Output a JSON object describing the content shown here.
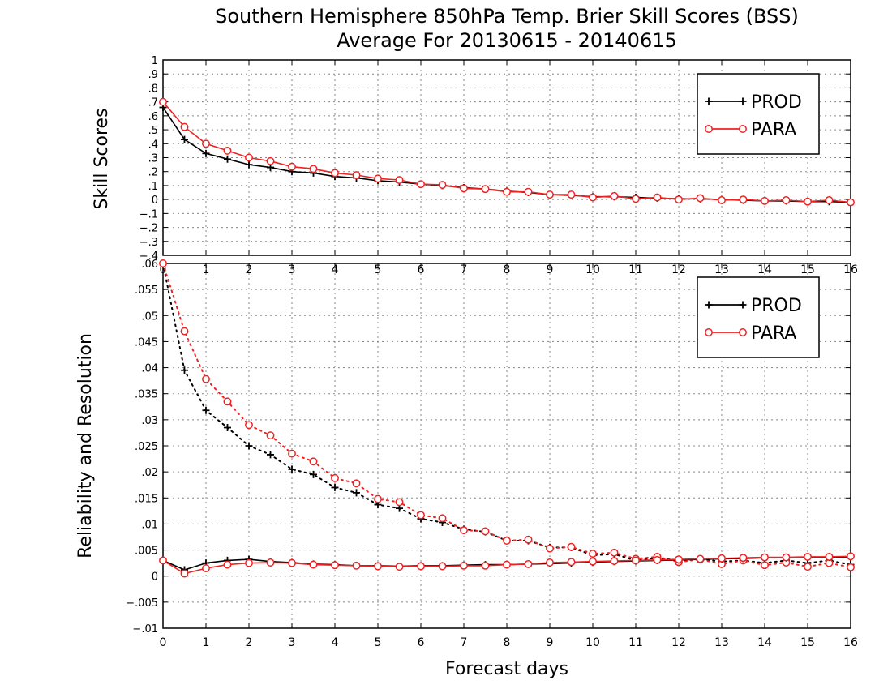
{
  "title_line1": "Southern Hemisphere 850hPa Temp. Brier Skill Scores (BSS)",
  "title_line2": "Average For 20130615 - 20140615",
  "xlabel": "Forecast days",
  "colors": {
    "PROD": "#000000",
    "PARA": "#ee2222",
    "grid": "#888888"
  },
  "chart_data": [
    {
      "type": "line",
      "panel": "top",
      "ylabel": "Skill Scores",
      "ylim": [
        -0.4,
        1
      ],
      "yticks": [
        -0.4,
        -0.3,
        -0.2,
        -0.1,
        0,
        0.1,
        0.2,
        0.3,
        0.4,
        0.5,
        0.6,
        0.7,
        0.8,
        0.9,
        1
      ],
      "xlim": [
        0,
        16
      ],
      "xticks": [
        0,
        1,
        2,
        3,
        4,
        5,
        6,
        7,
        8,
        9,
        10,
        11,
        12,
        13,
        14,
        15,
        16
      ],
      "grid": true,
      "legend_position": "top-right",
      "legend": [
        "PROD",
        "PARA"
      ],
      "x": [
        0,
        0.5,
        1,
        1.5,
        2,
        2.5,
        3,
        3.5,
        4,
        4.5,
        5,
        5.5,
        6,
        6.5,
        7,
        7.5,
        8,
        8.5,
        9,
        9.5,
        10,
        10.5,
        11,
        11.5,
        12,
        12.5,
        13,
        13.5,
        14,
        14.5,
        15,
        15.5,
        16
      ],
      "series": [
        {
          "name": "PROD",
          "style": "solid",
          "marker": "plus",
          "values": [
            0.66,
            0.43,
            0.33,
            0.29,
            0.25,
            0.23,
            0.2,
            0.19,
            0.165,
            0.155,
            0.135,
            0.125,
            0.11,
            0.1,
            0.085,
            0.075,
            0.06,
            0.05,
            0.035,
            0.03,
            0.02,
            0.02,
            0.015,
            0.01,
            0.005,
            0.005,
            0.0,
            -0.005,
            -0.01,
            -0.01,
            -0.015,
            -0.015,
            -0.02
          ]
        },
        {
          "name": "PARA",
          "style": "solid",
          "marker": "circle",
          "values": [
            0.7,
            0.52,
            0.4,
            0.35,
            0.3,
            0.275,
            0.235,
            0.22,
            0.19,
            0.175,
            0.15,
            0.14,
            0.11,
            0.105,
            0.08,
            0.075,
            0.055,
            0.055,
            0.035,
            0.035,
            0.015,
            0.025,
            0.005,
            0.015,
            0.0,
            0.01,
            -0.005,
            0.0,
            -0.01,
            -0.005,
            -0.015,
            -0.005,
            -0.02
          ]
        }
      ]
    },
    {
      "type": "line",
      "panel": "bottom",
      "ylabel": "Reliability and Resolution",
      "ylim": [
        -0.01,
        0.06
      ],
      "yticks": [
        -0.01,
        -0.005,
        0,
        0.005,
        0.01,
        0.015,
        0.02,
        0.025,
        0.03,
        0.035,
        0.04,
        0.045,
        0.05,
        0.055,
        0.06
      ],
      "xlim": [
        0,
        16
      ],
      "xticks": [
        0,
        1,
        2,
        3,
        4,
        5,
        6,
        7,
        8,
        9,
        10,
        11,
        12,
        13,
        14,
        15,
        16
      ],
      "grid": true,
      "legend_position": "top-right",
      "legend": [
        "PROD",
        "PARA"
      ],
      "x": [
        0,
        0.5,
        1,
        1.5,
        2,
        2.5,
        3,
        3.5,
        4,
        4.5,
        5,
        5.5,
        6,
        6.5,
        7,
        7.5,
        8,
        8.5,
        9,
        9.5,
        10,
        10.5,
        11,
        11.5,
        12,
        12.5,
        13,
        13.5,
        14,
        14.5,
        15,
        15.5,
        16
      ],
      "series": [
        {
          "name": "PROD",
          "style": "dotted",
          "marker": "plus",
          "values": [
            0.06,
            0.0395,
            0.0318,
            0.0285,
            0.025,
            0.0233,
            0.0205,
            0.0195,
            0.017,
            0.016,
            0.0137,
            0.013,
            0.011,
            0.0103,
            0.009,
            0.0085,
            0.0068,
            0.0068,
            0.0055,
            0.0055,
            0.004,
            0.0042,
            0.003,
            0.0035,
            0.003,
            0.0032,
            0.0028,
            0.003,
            0.0025,
            0.003,
            0.0025,
            0.003,
            0.0022
          ]
        },
        {
          "name": "PARA",
          "style": "dotted",
          "marker": "circle",
          "values": [
            0.06,
            0.047,
            0.0378,
            0.0335,
            0.029,
            0.027,
            0.0235,
            0.022,
            0.0188,
            0.0178,
            0.0148,
            0.0142,
            0.0117,
            0.0111,
            0.0088,
            0.0086,
            0.0068,
            0.007,
            0.0053,
            0.0056,
            0.0043,
            0.0045,
            0.0033,
            0.0037,
            0.0027,
            0.0032,
            0.0023,
            0.003,
            0.0021,
            0.0026,
            0.0018,
            0.0025,
            0.0017
          ]
        },
        {
          "name": "PROD",
          "style": "solid",
          "marker": "plus",
          "values": [
            0.003,
            0.0012,
            0.0025,
            0.003,
            0.0032,
            0.0028,
            0.0026,
            0.0023,
            0.0022,
            0.002,
            0.002,
            0.0019,
            0.002,
            0.002,
            0.0021,
            0.0022,
            0.0022,
            0.0023,
            0.0024,
            0.0025,
            0.0027,
            0.0028,
            0.0029,
            0.003,
            0.0031,
            0.0032,
            0.0033,
            0.0034,
            0.0035,
            0.0035,
            0.0036,
            0.0036,
            0.0037
          ]
        },
        {
          "name": "PARA",
          "style": "solid",
          "marker": "circle",
          "values": [
            0.003,
            0.0005,
            0.0015,
            0.0022,
            0.0025,
            0.0026,
            0.0025,
            0.0022,
            0.0021,
            0.002,
            0.0019,
            0.0018,
            0.0019,
            0.0019,
            0.002,
            0.002,
            0.0022,
            0.0023,
            0.0026,
            0.0027,
            0.0028,
            0.0029,
            0.003,
            0.0031,
            0.0032,
            0.0033,
            0.0034,
            0.0035,
            0.0036,
            0.0036,
            0.0037,
            0.0037,
            0.0038
          ]
        }
      ]
    }
  ]
}
